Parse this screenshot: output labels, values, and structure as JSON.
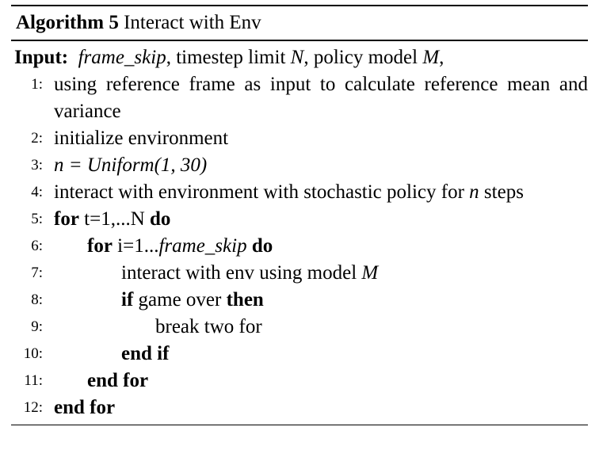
{
  "algorithm": {
    "label": "Algorithm 5",
    "title": "Interact with Env",
    "input_keyword": "Input:",
    "input_var1": "frame_skip",
    "input_text2": ", timestep limit ",
    "input_var2": "N",
    "input_text3": ", policy model ",
    "input_var3": "M",
    "input_text4": ",",
    "lines": [
      {
        "num": "1:",
        "text": "using reference frame as input to calculate reference mean and variance"
      },
      {
        "num": "2:",
        "text": "initialize environment"
      },
      {
        "num": "3:",
        "text": "n = Uniform(1, 30)"
      },
      {
        "num": "4:",
        "text_a": "interact with environment with stochastic policy for ",
        "var": "n",
        "text_b": "steps"
      },
      {
        "num": "5:",
        "kw1": "for",
        "text": " t=1,...N ",
        "kw2": "do"
      },
      {
        "num": "6:",
        "kw1": "for",
        "text": " i=1...",
        "var": "frame_skip",
        "kw2": "do"
      },
      {
        "num": "7:",
        "text": "interact with env using model ",
        "var": "M"
      },
      {
        "num": "8:",
        "kw1": "if",
        "text": " game over ",
        "kw2": "then"
      },
      {
        "num": "9:",
        "text": "break two for"
      },
      {
        "num": "10:",
        "kw1": "end if"
      },
      {
        "num": "11:",
        "kw1": "end for"
      },
      {
        "num": "12:",
        "kw1": "end for"
      }
    ]
  }
}
